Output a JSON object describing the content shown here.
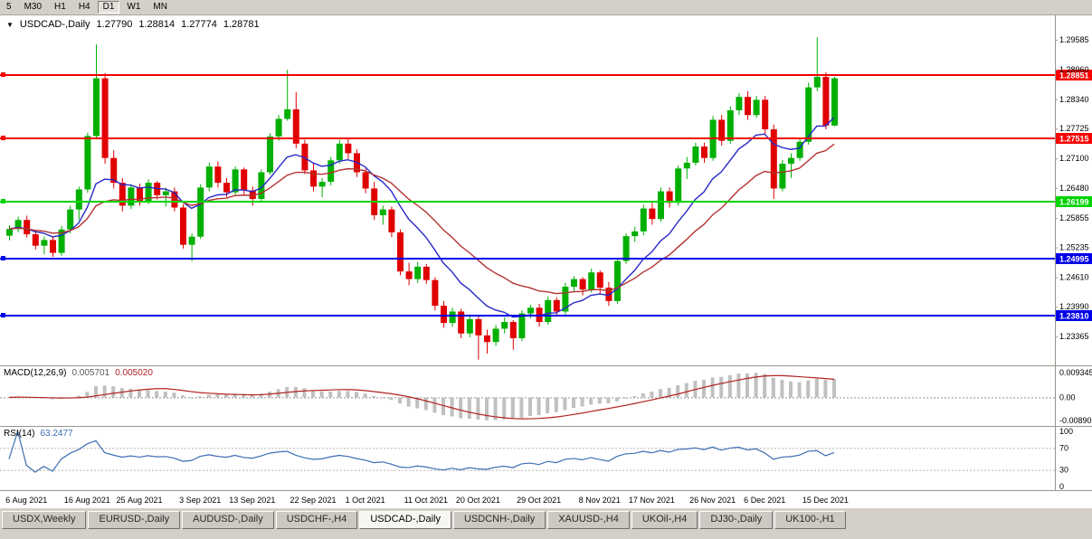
{
  "toolbar": {
    "timeframes": [
      {
        "label": "5",
        "active": false
      },
      {
        "label": "M30",
        "active": false
      },
      {
        "label": "H1",
        "active": false
      },
      {
        "label": "H4",
        "active": false
      },
      {
        "label": "D1",
        "active": true
      },
      {
        "label": "W1",
        "active": false
      },
      {
        "label": "MN",
        "active": false
      }
    ]
  },
  "symbol_header": {
    "arrow": "▼",
    "title": "USDCAD-,Daily",
    "open": "1.27790",
    "high": "1.28814",
    "low": "1.27774",
    "close": "1.28781"
  },
  "macd_panel": {
    "title": "MACD(12,26,9)",
    "main_value": "0.005701",
    "signal_value": "0.005020",
    "axis_top_label": "0.009345",
    "axis_zero_label": "0.00",
    "axis_bottom_label": "-0.00890"
  },
  "rsi_panel": {
    "title": "RSI(14)",
    "value": "63.2477",
    "axis_labels": [
      100,
      70,
      30,
      0
    ],
    "levels": [
      70,
      30
    ]
  },
  "tabs": [
    {
      "label": "USDX,Weekly",
      "active": false
    },
    {
      "label": "EURUSD-,Daily",
      "active": false
    },
    {
      "label": "AUDUSD-,Daily",
      "active": false
    },
    {
      "label": "USDCHF-,H4",
      "active": false
    },
    {
      "label": "USDCAD-,Daily",
      "active": true
    },
    {
      "label": "USDCNH-,Daily",
      "active": false
    },
    {
      "label": "XAUUSD-,H4",
      "active": false
    },
    {
      "label": "UKOil-,H4",
      "active": false
    },
    {
      "label": "DJ30-,Daily",
      "active": false
    },
    {
      "label": "UK100-,H1",
      "active": false
    }
  ],
  "chart_data": {
    "type": "candlestick",
    "title": "USDCAD-,Daily",
    "ylim": [
      1.2278,
      1.301
    ],
    "colors": {
      "up": "#00b000",
      "down": "#e00000",
      "axis_text": "#000000",
      "hist": "#c0c0c0",
      "macd_signal": "#b22222",
      "rsi_line": "#3c6eb4"
    },
    "price_ticks": [
      {
        "value": 1.29585,
        "label": "1.29585"
      },
      {
        "value": 1.2896,
        "label": "1.28960"
      },
      {
        "value": 1.2834,
        "label": "1.28340"
      },
      {
        "value": 1.27725,
        "label": "1.27725"
      },
      {
        "value": 1.271,
        "label": "1.27100"
      },
      {
        "value": 1.2648,
        "label": "1.26480"
      },
      {
        "value": 1.25855,
        "label": "1.25855"
      },
      {
        "value": 1.25235,
        "label": "1.25235"
      },
      {
        "value": 1.2461,
        "label": "1.24610"
      },
      {
        "value": 1.2399,
        "label": "1.23990"
      },
      {
        "value": 1.23365,
        "label": "1.23365"
      }
    ],
    "hlines": [
      {
        "value": 1.28851,
        "label": "1.28851",
        "color": "#f80000"
      },
      {
        "value": 1.27515,
        "label": "1.27515",
        "color": "#f80000"
      },
      {
        "value": 1.26199,
        "label": "1.26199",
        "color": "#00d400"
      },
      {
        "value": 1.24995,
        "label": "1.24995",
        "color": "#0000e8"
      },
      {
        "value": 1.2381,
        "label": "1.23810",
        "color": "#0000e8"
      }
    ],
    "x_ticks": [
      {
        "index": 2,
        "label": "6 Aug 2021"
      },
      {
        "index": 9,
        "label": "16 Aug 2021"
      },
      {
        "index": 15,
        "label": "25 Aug 2021"
      },
      {
        "index": 22,
        "label": "3 Sep 2021"
      },
      {
        "index": 28,
        "label": "13 Sep 2021"
      },
      {
        "index": 35,
        "label": "22 Sep 2021"
      },
      {
        "index": 41,
        "label": "1 Oct 2021"
      },
      {
        "index": 48,
        "label": "11 Oct 2021"
      },
      {
        "index": 54,
        "label": "20 Oct 2021"
      },
      {
        "index": 61,
        "label": "29 Oct 2021"
      },
      {
        "index": 68,
        "label": "8 Nov 2021"
      },
      {
        "index": 74,
        "label": "17 Nov 2021"
      },
      {
        "index": 81,
        "label": "26 Nov 2021"
      },
      {
        "index": 87,
        "label": "6 Dec 2021"
      },
      {
        "index": 94,
        "label": "15 Dec 2021"
      }
    ],
    "ma": [
      {
        "period": 10,
        "color": "#2828c8"
      },
      {
        "period": 21,
        "color": "#b43232"
      }
    ],
    "macd": {
      "fast": 12,
      "slow": 26,
      "signal": 9
    },
    "rsi": {
      "period": 14
    },
    "ohlc": [
      [
        1.2548,
        1.257,
        1.2538,
        1.2562
      ],
      [
        1.2562,
        1.2588,
        1.2555,
        1.2581
      ],
      [
        1.2581,
        1.259,
        1.2544,
        1.2551
      ],
      [
        1.2551,
        1.2559,
        1.2519,
        1.2527
      ],
      [
        1.2527,
        1.2546,
        1.2509,
        1.2539
      ],
      [
        1.2539,
        1.2547,
        1.2504,
        1.2512
      ],
      [
        1.2512,
        1.2569,
        1.2506,
        1.2561
      ],
      [
        1.2561,
        1.2611,
        1.2553,
        1.2603
      ],
      [
        1.2603,
        1.2651,
        1.2581,
        1.2645
      ],
      [
        1.2645,
        1.2764,
        1.2638,
        1.2757
      ],
      [
        1.2757,
        1.2949,
        1.275,
        1.2878
      ],
      [
        1.2878,
        1.2889,
        1.2699,
        1.2711
      ],
      [
        1.2711,
        1.2727,
        1.2647,
        1.2659
      ],
      [
        1.2659,
        1.2669,
        1.2599,
        1.2611
      ],
      [
        1.2611,
        1.2656,
        1.2604,
        1.2649
      ],
      [
        1.2649,
        1.2657,
        1.2611,
        1.262
      ],
      [
        1.262,
        1.2666,
        1.2614,
        1.2659
      ],
      [
        1.2659,
        1.2663,
        1.2624,
        1.2633
      ],
      [
        1.2633,
        1.2649,
        1.2609,
        1.2641
      ],
      [
        1.2641,
        1.2649,
        1.2599,
        1.2607
      ],
      [
        1.2607,
        1.2614,
        1.2521,
        1.2529
      ],
      [
        1.2529,
        1.2553,
        1.2494,
        1.2546
      ],
      [
        1.2546,
        1.2656,
        1.2541,
        1.2649
      ],
      [
        1.2649,
        1.2701,
        1.2641,
        1.2693
      ],
      [
        1.2693,
        1.2704,
        1.2649,
        1.2659
      ],
      [
        1.2659,
        1.2669,
        1.2629,
        1.2639
      ],
      [
        1.2639,
        1.2693,
        1.2634,
        1.2687
      ],
      [
        1.2687,
        1.2691,
        1.2635,
        1.2643
      ],
      [
        1.2643,
        1.2651,
        1.2611,
        1.2625
      ],
      [
        1.2625,
        1.2687,
        1.2619,
        1.2681
      ],
      [
        1.2681,
        1.2763,
        1.2676,
        1.2756
      ],
      [
        1.2756,
        1.2801,
        1.2747,
        1.2793
      ],
      [
        1.2793,
        1.2896,
        1.2789,
        1.2813
      ],
      [
        1.2813,
        1.2849,
        1.2731,
        1.2741
      ],
      [
        1.2741,
        1.2749,
        1.2677,
        1.2685
      ],
      [
        1.2685,
        1.2699,
        1.2641,
        1.2651
      ],
      [
        1.2651,
        1.2669,
        1.2629,
        1.2661
      ],
      [
        1.2661,
        1.2713,
        1.2653,
        1.2706
      ],
      [
        1.2706,
        1.2749,
        1.2699,
        1.2741
      ],
      [
        1.2741,
        1.2751,
        1.2709,
        1.2721
      ],
      [
        1.2721,
        1.2729,
        1.2671,
        1.2681
      ],
      [
        1.2681,
        1.2689,
        1.2637,
        1.2647
      ],
      [
        1.2647,
        1.2661,
        1.2581,
        1.2591
      ],
      [
        1.2591,
        1.2611,
        1.2571,
        1.2603
      ],
      [
        1.2603,
        1.2609,
        1.2545,
        1.2555
      ],
      [
        1.2555,
        1.2561,
        1.2465,
        1.2473
      ],
      [
        1.2473,
        1.2491,
        1.2444,
        1.2457
      ],
      [
        1.2457,
        1.2493,
        1.2449,
        1.2483
      ],
      [
        1.2483,
        1.2489,
        1.2447,
        1.2455
      ],
      [
        1.2455,
        1.2461,
        1.2391,
        1.2401
      ],
      [
        1.2401,
        1.2411,
        1.2355,
        1.2365
      ],
      [
        1.2365,
        1.2397,
        1.2357,
        1.2389
      ],
      [
        1.2389,
        1.2395,
        1.2333,
        1.2343
      ],
      [
        1.2343,
        1.2383,
        1.2335,
        1.2373
      ],
      [
        1.2373,
        1.2379,
        1.2288,
        1.2339
      ],
      [
        1.2339,
        1.2351,
        1.2301,
        1.2325
      ],
      [
        1.2325,
        1.2361,
        1.2317,
        1.2353
      ],
      [
        1.2353,
        1.2377,
        1.2343,
        1.2367
      ],
      [
        1.2367,
        1.2371,
        1.2309,
        1.2333
      ],
      [
        1.2333,
        1.2391,
        1.2327,
        1.2385
      ],
      [
        1.2385,
        1.2403,
        1.2375,
        1.2397
      ],
      [
        1.2397,
        1.2405,
        1.2357,
        1.2367
      ],
      [
        1.2367,
        1.2421,
        1.2361,
        1.2413
      ],
      [
        1.2413,
        1.2419,
        1.2379,
        1.2389
      ],
      [
        1.2389,
        1.2449,
        1.2383,
        1.2441
      ],
      [
        1.2441,
        1.2463,
        1.2431,
        1.2457
      ],
      [
        1.2457,
        1.2461,
        1.2423,
        1.2435
      ],
      [
        1.2435,
        1.2479,
        1.2429,
        1.2471
      ],
      [
        1.2471,
        1.2475,
        1.2427,
        1.2439
      ],
      [
        1.2439,
        1.2451,
        1.2401,
        1.2411
      ],
      [
        1.2411,
        1.2501,
        1.2405,
        1.2495
      ],
      [
        1.2495,
        1.2553,
        1.2489,
        1.2547
      ],
      [
        1.2547,
        1.2567,
        1.2535,
        1.2557
      ],
      [
        1.2557,
        1.2613,
        1.2549,
        1.2605
      ],
      [
        1.2605,
        1.2617,
        1.2571,
        1.2583
      ],
      [
        1.2583,
        1.2649,
        1.2577,
        1.2641
      ],
      [
        1.2641,
        1.2649,
        1.2607,
        1.2617
      ],
      [
        1.2617,
        1.2695,
        1.2611,
        1.2689
      ],
      [
        1.2689,
        1.2713,
        1.2667,
        1.2701
      ],
      [
        1.2701,
        1.2743,
        1.2695,
        1.2735
      ],
      [
        1.2735,
        1.2743,
        1.2701,
        1.2711
      ],
      [
        1.2711,
        1.2799,
        1.2705,
        1.2791
      ],
      [
        1.2791,
        1.2801,
        1.2737,
        1.2747
      ],
      [
        1.2747,
        1.2819,
        1.2741,
        1.2811
      ],
      [
        1.2811,
        1.2847,
        1.2801,
        1.2839
      ],
      [
        1.2839,
        1.2851,
        1.2791,
        1.2801
      ],
      [
        1.2801,
        1.2841,
        1.2795,
        1.2833
      ],
      [
        1.2833,
        1.2841,
        1.2761,
        1.2771
      ],
      [
        1.2771,
        1.2781,
        1.2625,
        1.2647
      ],
      [
        1.2647,
        1.2707,
        1.2641,
        1.2699
      ],
      [
        1.2699,
        1.2721,
        1.2669,
        1.2711
      ],
      [
        1.2711,
        1.2751,
        1.2705,
        1.2745
      ],
      [
        1.2745,
        1.2869,
        1.2739,
        1.2859
      ],
      [
        1.2859,
        1.2964,
        1.2851,
        1.2881
      ],
      [
        1.2881,
        1.2891,
        1.2771,
        1.2779
      ],
      [
        1.2779,
        1.28814,
        1.27774,
        1.28781
      ]
    ]
  }
}
